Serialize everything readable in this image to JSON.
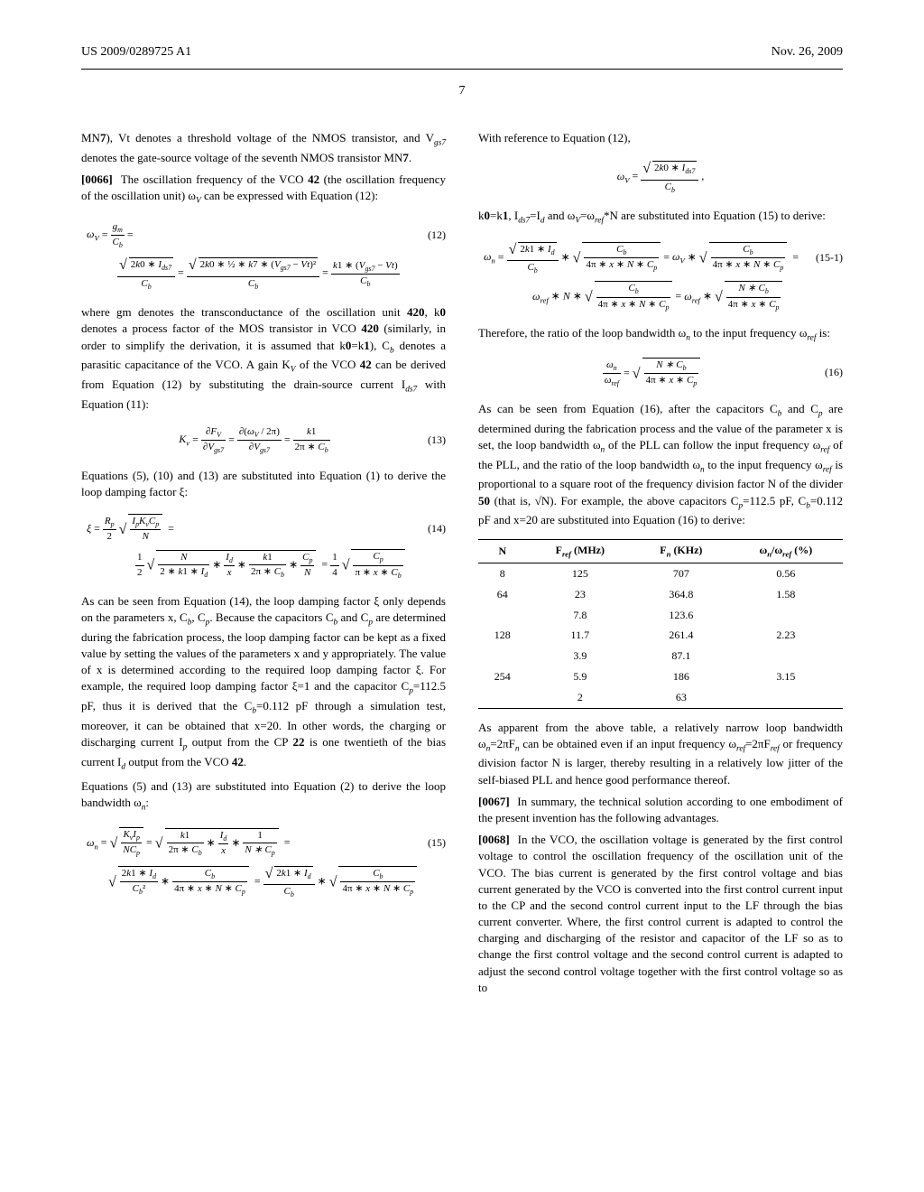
{
  "header": {
    "doc_number": "US 2009/0289725 A1",
    "date": "Nov. 26, 2009"
  },
  "page_number": "7",
  "left": {
    "p1": "MN7), Vt denotes a threshold voltage of the NMOS transistor, and V_gs7 denotes the gate-source voltage of the seventh NMOS transistor MN7.",
    "p2_num": "[0066]",
    "p2": "The oscillation frequency of the VCO 42 (the oscillation frequency of the oscillation unit) ω_V can be expressed with Equation (12):",
    "eq12_num": "(12)",
    "p3": "where gm denotes the transconductance of the oscillation unit 420, k0 denotes a process factor of the MOS transistor in VCO 420 (similarly, in order to simplify the derivation, it is assumed that k0=k1), C_b denotes a parasitic capacitance of the VCO. A gain K_V of the VCO 42 can be derived from Equation (12) by substituting the drain-source current I_ds7 with Equation (11):",
    "eq13_num": "(13)",
    "p4": "Equations (5), (10) and (13) are substituted into Equation (1) to derive the loop damping factor ξ:",
    "eq14_num": "(14)",
    "p5": "As can be seen from Equation (14), the loop damping factor ξ only depends on the parameters x, C_b, C_p. Because the capacitors C_b and C_p are determined during the fabrication process, the loop damping factor can be kept as a fixed value by setting the values of the parameters x and y appropriately. The value of x is determined according to the required loop damping factor ξ. For example, the required loop damping factor ξ=1 and the capacitor C_p=112.5 pF, thus it is derived that the C_b=0.112 pF through a simulation test, moreover, it can be obtained that x=20. In other words, the charging or discharging current I_p output from the CP 22 is one twentieth of the bias current I_d output from the VCO 42.",
    "p6": "Equations (5) and (13) are substituted into Equation (2) to derive the loop bandwidth ω_n:",
    "eq15_num": "(15)"
  },
  "right": {
    "p1": "With reference to Equation (12),",
    "p2": "k0=k1, I_ds7=I_d and ω_V=ω_ref*N are substituted into Equation (15) to derive:",
    "eq15_1_num": "(15-1)",
    "p3": "Therefore, the ratio of the loop bandwidth ω_n to the input frequency ω_ref is:",
    "eq16_num": "(16)",
    "p4": "As can be seen from Equation (16), after the capacitors C_b and C_p are determined during the fabrication process and the value of the parameter x is set, the loop bandwidth ω_n of the PLL can follow the input frequency ω_ref of the PLL, and the ratio of the loop bandwidth ω_n to the input frequency ω_ref is proportional to a square root of the frequency division factor N of the divider 50 (that is, √N). For example, the above capacitors C_p=112.5 pF, C_b=0.112 pF and x=20 are substituted into Equation (16) to derive:",
    "table": {
      "columns": [
        "N",
        "F_ref (MHz)",
        "F_n (KHz)",
        "ω_n/ω_ref (%)"
      ],
      "rows": [
        [
          "8",
          "125",
          "707",
          "0.56"
        ],
        [
          "64",
          "23",
          "364.8",
          "1.58"
        ],
        [
          "",
          "7.8",
          "123.6",
          ""
        ],
        [
          "128",
          "11.7",
          "261.4",
          "2.23"
        ],
        [
          "",
          "3.9",
          "87.1",
          ""
        ],
        [
          "254",
          "5.9",
          "186",
          "3.15"
        ],
        [
          "",
          "2",
          "63",
          ""
        ]
      ]
    },
    "p5": "As apparent from the above table, a relatively narrow loop bandwidth ω_n=2πF_n can be obtained even if an input frequency ω_ref=2πF_ref or frequency division factor N is larger, thereby resulting in a relatively low jitter of the self-biased PLL and hence good performance thereof.",
    "p6_num": "[0067]",
    "p6": "In summary, the technical solution according to one embodiment of the present invention has the following advantages.",
    "p7_num": "[0068]",
    "p7": "In the VCO, the oscillation voltage is generated by the first control voltage to control the oscillation frequency of the oscillation unit of the VCO. The bias current is generated by the first control voltage and bias current generated by the VCO is converted into the first control current input to the CP and the second control current input to the LF through the bias current converter. Where, the first control current is adapted to control the charging and discharging of the resistor and capacitor of the LF so as to change the first control voltage and the second control current is adapted to adjust the second control voltage together with the first control voltage so as to"
  }
}
